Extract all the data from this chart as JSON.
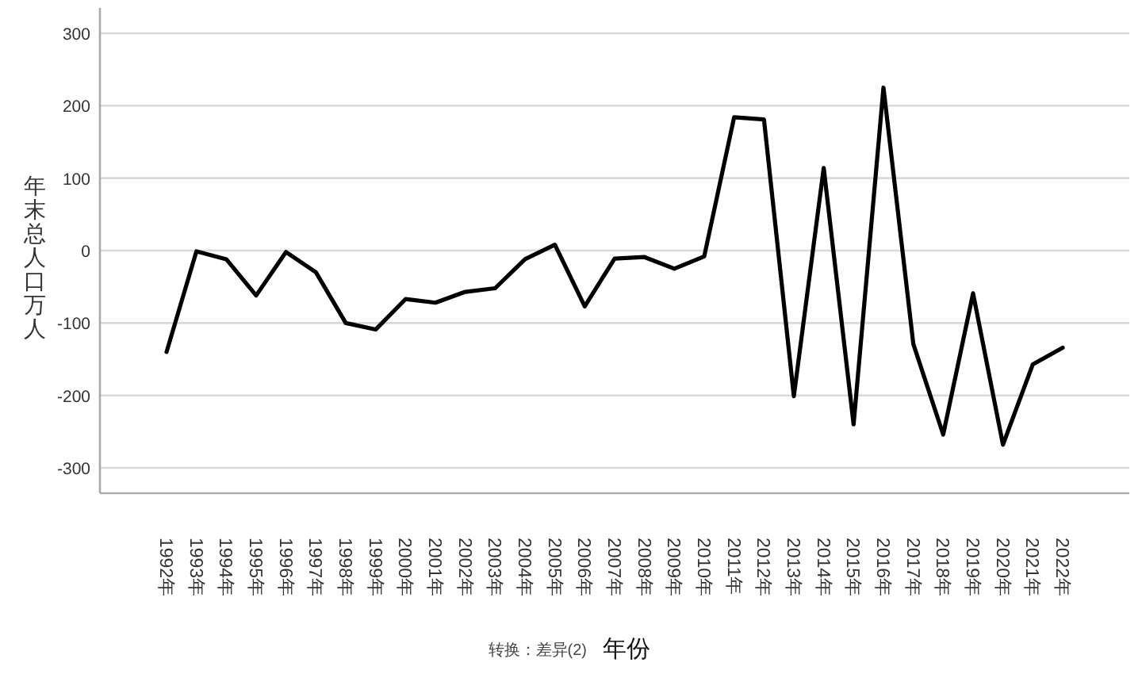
{
  "chart_data": {
    "type": "line",
    "xlabel": "年份",
    "ylabel": "年末总人口万人",
    "annotations": [
      "转换：差异(2)"
    ],
    "categories": [
      "1992年",
      "1993年",
      "1994年",
      "1995年",
      "1996年",
      "1997年",
      "1998年",
      "1999年",
      "2000年",
      "2001年",
      "2002年",
      "2003年",
      "2004年",
      "2005年",
      "2006年",
      "2007年",
      "2008年",
      "2009年",
      "2010年",
      "2011年",
      "2012年",
      "2013年",
      "2014年",
      "2015年",
      "2016年",
      "2017年",
      "2018年",
      "2019年",
      "2020年",
      "2021年",
      "2022年"
    ],
    "series": [
      {
        "color": "#000000",
        "values": [
          -140,
          -1,
          -12,
          -62,
          -2,
          -30,
          -100,
          -109,
          -67,
          -72,
          -57,
          -52,
          -12,
          8,
          -77,
          -11,
          -9,
          -25,
          -8,
          184,
          181,
          -201,
          114,
          -240,
          225,
          -129,
          -254,
          -59,
          -268,
          -157,
          -134
        ]
      }
    ],
    "ylim": [
      -335,
      335
    ],
    "yticks": [
      -300,
      -200,
      -100,
      0,
      100,
      200,
      300
    ],
    "grid": "y",
    "marker": "none",
    "line_style": "solid"
  }
}
